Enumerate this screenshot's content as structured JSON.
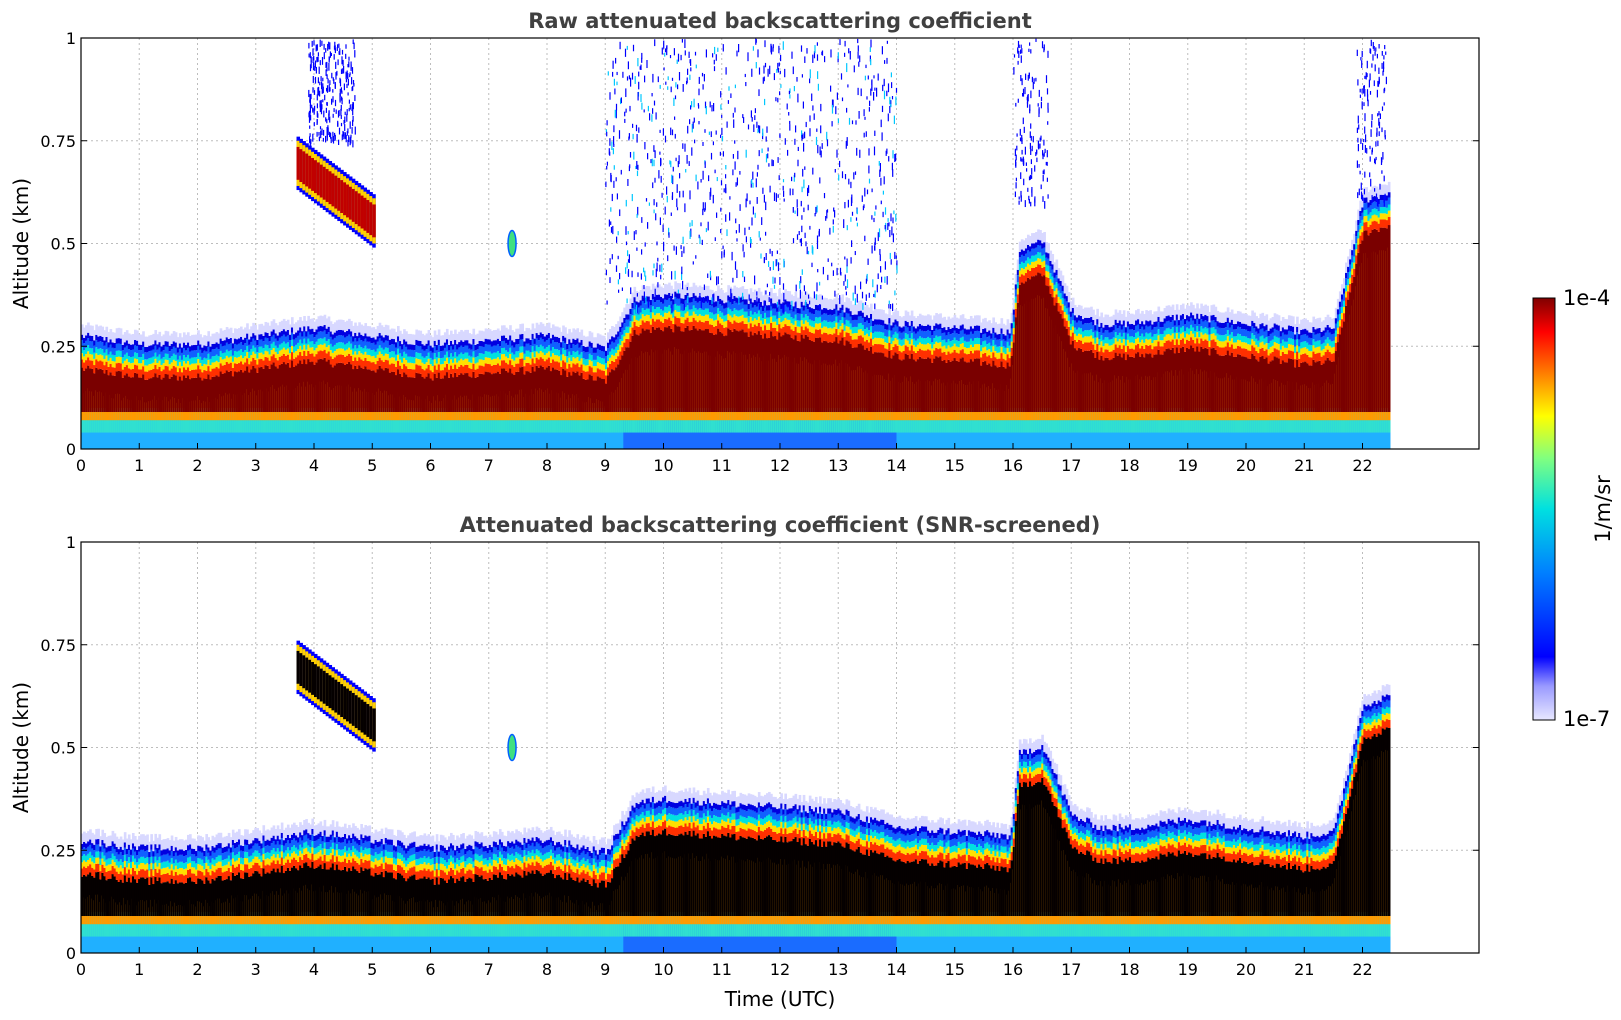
{
  "chart_data": [
    {
      "type": "heatmap",
      "title": "Raw attenuated backscattering coefficient",
      "xlabel": "",
      "ylabel": "Altitude (km)",
      "xlim": [
        0,
        24
      ],
      "ylim": [
        0,
        1
      ],
      "x_ticks": [
        "0",
        "1",
        "2",
        "3",
        "4",
        "5",
        "6",
        "7",
        "8",
        "9",
        "10",
        "11",
        "12",
        "13",
        "14",
        "15",
        "16",
        "17",
        "18",
        "19",
        "20",
        "21",
        "22"
      ],
      "y_ticks": [
        "0",
        "0.25",
        "0.5",
        "0.75",
        "1"
      ],
      "grid": true,
      "data_end_time": 22.45,
      "boundary_layer_top_km": [
        [
          0,
          0.27
        ],
        [
          1,
          0.25
        ],
        [
          2,
          0.25
        ],
        [
          3,
          0.27
        ],
        [
          4,
          0.29
        ],
        [
          5,
          0.27
        ],
        [
          6,
          0.25
        ],
        [
          7,
          0.26
        ],
        [
          8,
          0.27
        ],
        [
          9,
          0.24
        ],
        [
          9.5,
          0.36
        ],
        [
          10,
          0.37
        ],
        [
          11,
          0.36
        ],
        [
          12,
          0.35
        ],
        [
          13,
          0.34
        ],
        [
          14,
          0.3
        ],
        [
          15,
          0.29
        ],
        [
          15.95,
          0.28
        ],
        [
          16.1,
          0.48
        ],
        [
          16.5,
          0.5
        ],
        [
          17,
          0.33
        ],
        [
          17.5,
          0.3
        ],
        [
          18,
          0.3
        ],
        [
          19,
          0.32
        ],
        [
          20,
          0.3
        ],
        [
          21,
          0.28
        ],
        [
          21.5,
          0.29
        ],
        [
          22,
          0.6
        ],
        [
          22.45,
          0.62
        ]
      ],
      "features": [
        {
          "name": "elevated layer",
          "t0": 3.7,
          "t1": 5.0,
          "z_top": 0.75,
          "z_bottom": 0.5
        },
        {
          "name": "small cloud",
          "t": 7.4,
          "z": 0.5
        },
        {
          "name": "noise region",
          "t0": 9.0,
          "t1": 14.0,
          "z0": 0.35,
          "z1": 1.0
        }
      ]
    },
    {
      "type": "heatmap",
      "title": "Attenuated backscattering coefficient (SNR-screened)",
      "xlabel": "Time (UTC)",
      "ylabel": "Altitude (km)",
      "xlim": [
        0,
        24
      ],
      "ylim": [
        0,
        1
      ],
      "x_ticks": [
        "0",
        "1",
        "2",
        "3",
        "4",
        "5",
        "6",
        "7",
        "8",
        "9",
        "10",
        "11",
        "12",
        "13",
        "14",
        "15",
        "16",
        "17",
        "18",
        "19",
        "20",
        "21",
        "22"
      ],
      "y_ticks": [
        "0",
        "0.25",
        "0.5",
        "0.75",
        "1"
      ],
      "grid": true,
      "data_end_time": 22.45
    }
  ],
  "colorbar": {
    "label": "1/m/sr",
    "max_label": "1e-4",
    "min_label": "1e-7",
    "scale": "log",
    "colormap": "jet",
    "range": [
      1e-07,
      0.0001
    ]
  }
}
